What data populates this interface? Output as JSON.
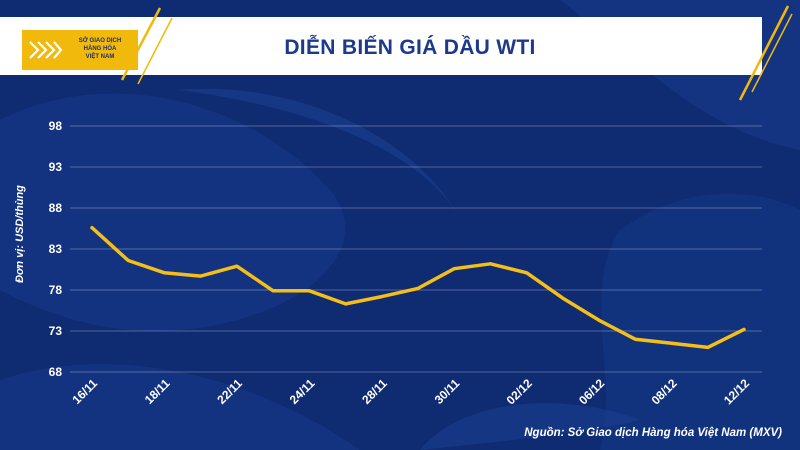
{
  "header": {
    "logo": {
      "lines": [
        "SỞ GIAO DỊCH",
        "HÀNG HÓA",
        "VIỆT NAM"
      ],
      "color": "#f0b90b"
    },
    "title": "DIỄN BIẾN GIÁ DẦU WTI"
  },
  "footer": {
    "source": "Nguồn: Sở Giao dịch Hàng hóa Việt Nam (MXV)"
  },
  "chart_data": {
    "type": "line",
    "title": "DIỄN BIẾN GIÁ DẦU WTI",
    "ylabel": "Đơn vị: USD/thùng",
    "xlabel": "",
    "ylim": [
      68,
      98
    ],
    "yticks": [
      68,
      73,
      78,
      83,
      88,
      93,
      98
    ],
    "grid": true,
    "x": [
      "16/11",
      "17/11",
      "18/11",
      "21/11",
      "22/11",
      "23/11",
      "24/11",
      "25/11",
      "28/11",
      "29/11",
      "30/11",
      "01/12",
      "02/12",
      "05/12",
      "06/12",
      "07/12",
      "08/12",
      "09/12",
      "12/12"
    ],
    "xtick_labels": [
      "16/11",
      "18/11",
      "22/11",
      "24/11",
      "28/11",
      "30/11",
      "02/12",
      "06/12",
      "08/12",
      "12/12"
    ],
    "series": [
      {
        "values": [
          85.6,
          81.6,
          80.1,
          79.7,
          80.9,
          77.9,
          77.9,
          76.3,
          77.2,
          78.2,
          80.6,
          81.2,
          80.1,
          77.0,
          74.3,
          72.0,
          71.5,
          71.0,
          73.2
        ],
        "color": "#f5bf17"
      }
    ]
  }
}
